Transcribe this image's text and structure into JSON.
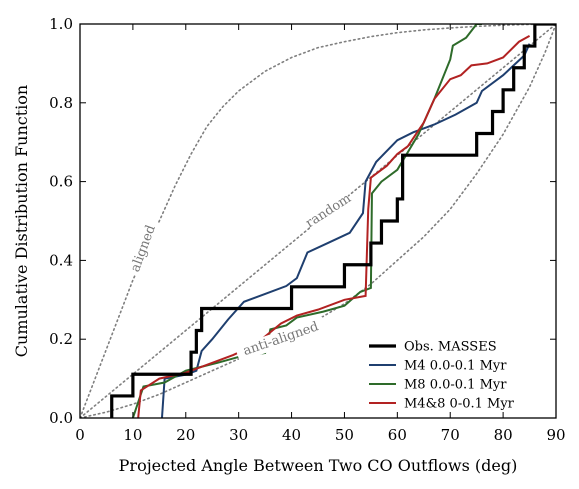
{
  "chart_data": {
    "type": "line",
    "xlabel": "Projected Angle Between Two CO Outflows (deg)",
    "ylabel": "Cumulative Distribution Function",
    "xlim": [
      0,
      90
    ],
    "ylim": [
      0,
      1
    ],
    "x_ticks": [
      "0",
      "10",
      "20",
      "30",
      "40",
      "50",
      "60",
      "70",
      "80",
      "90"
    ],
    "y_ticks": [
      "0.0",
      "0.2",
      "0.4",
      "0.6",
      "0.8",
      "1.0"
    ],
    "grid": false,
    "legend_position": "lower-right",
    "annotations": [
      {
        "text": "aligned",
        "x": 12,
        "y": 0.43,
        "angle": -70
      },
      {
        "text": "random",
        "x": 47,
        "y": 0.525,
        "angle": -33
      },
      {
        "text": "anti-aligned",
        "x": 38,
        "y": 0.2,
        "angle": -19
      }
    ],
    "reference_curves": [
      {
        "name": "aligned",
        "color": "#7f7f7f",
        "dashed": true,
        "x": [
          0,
          2,
          4,
          6,
          8,
          10,
          12,
          15,
          18,
          21,
          24,
          27,
          30,
          35,
          40,
          45,
          50,
          55,
          60,
          65,
          70,
          75,
          80,
          85,
          90
        ],
        "y": [
          0,
          0.07,
          0.14,
          0.21,
          0.28,
          0.35,
          0.41,
          0.5,
          0.59,
          0.67,
          0.74,
          0.79,
          0.83,
          0.88,
          0.915,
          0.94,
          0.955,
          0.968,
          0.978,
          0.985,
          0.99,
          0.994,
          0.997,
          0.999,
          1.0
        ]
      },
      {
        "name": "random",
        "color": "#7f7f7f",
        "dashed": true,
        "x": [
          0,
          90
        ],
        "y": [
          0,
          1
        ]
      },
      {
        "name": "anti-aligned",
        "color": "#7f7f7f",
        "dashed": true,
        "x": [
          0,
          5,
          10,
          15,
          20,
          25,
          30,
          35,
          40,
          45,
          50,
          55,
          60,
          65,
          70,
          75,
          80,
          85,
          88,
          90
        ],
        "y": [
          0,
          0.015,
          0.035,
          0.06,
          0.09,
          0.12,
          0.15,
          0.18,
          0.21,
          0.25,
          0.29,
          0.34,
          0.4,
          0.46,
          0.53,
          0.62,
          0.72,
          0.84,
          0.93,
          1.0
        ]
      }
    ],
    "series": [
      {
        "name": "Obs. MASSES",
        "color": "#000000",
        "width": 3.2,
        "step": true,
        "x": [
          6,
          10,
          21,
          22,
          23,
          40,
          50,
          55,
          57,
          60,
          61,
          75,
          78,
          80,
          82,
          84,
          86,
          90
        ],
        "y": [
          0.056,
          0.111,
          0.167,
          0.222,
          0.278,
          0.333,
          0.389,
          0.444,
          0.5,
          0.556,
          0.667,
          0.722,
          0.778,
          0.833,
          0.889,
          0.944,
          1.0,
          1.0
        ]
      },
      {
        "name": "M4 0.0-0.1 Myr",
        "color": "#1f3f6f",
        "width": 2,
        "x": [
          15.5,
          16,
          20,
          22,
          23,
          25,
          28,
          31,
          35,
          39,
          41,
          43,
          47,
          51,
          53.5,
          54,
          56,
          60,
          63,
          67,
          71,
          75,
          76,
          80,
          84,
          85
        ],
        "y": [
          0,
          0.1,
          0.11,
          0.12,
          0.17,
          0.2,
          0.25,
          0.295,
          0.315,
          0.335,
          0.355,
          0.42,
          0.445,
          0.47,
          0.52,
          0.6,
          0.65,
          0.705,
          0.725,
          0.745,
          0.77,
          0.8,
          0.83,
          0.87,
          0.92,
          0.95
        ]
      },
      {
        "name": "M8 0.0-0.1 Myr",
        "color": "#2e6b2a",
        "width": 2,
        "x": [
          10,
          12,
          16,
          20,
          23,
          26,
          30,
          35,
          36,
          39,
          41,
          46,
          50,
          53,
          55,
          55.2,
          57,
          60,
          64,
          67,
          70,
          70.5,
          73,
          75,
          76
        ],
        "y": [
          0,
          0.08,
          0.09,
          0.12,
          0.13,
          0.14,
          0.155,
          0.165,
          0.225,
          0.235,
          0.255,
          0.27,
          0.285,
          0.32,
          0.33,
          0.57,
          0.6,
          0.63,
          0.72,
          0.81,
          0.91,
          0.945,
          0.965,
          1.0,
          1.0
        ]
      },
      {
        "name": "M4&8 0-0.1 Myr",
        "color": "#b22222",
        "width": 2,
        "x": [
          11,
          11.5,
          15,
          20,
          24,
          29,
          33,
          38,
          41,
          45,
          50,
          54,
          54.5,
          55,
          58,
          60,
          62,
          65,
          67,
          70,
          72,
          74,
          77,
          80,
          83,
          85
        ],
        "y": [
          0,
          0.07,
          0.1,
          0.115,
          0.135,
          0.16,
          0.185,
          0.24,
          0.26,
          0.275,
          0.3,
          0.31,
          0.53,
          0.61,
          0.64,
          0.67,
          0.69,
          0.75,
          0.81,
          0.86,
          0.87,
          0.895,
          0.9,
          0.915,
          0.955,
          0.97
        ]
      }
    ]
  }
}
